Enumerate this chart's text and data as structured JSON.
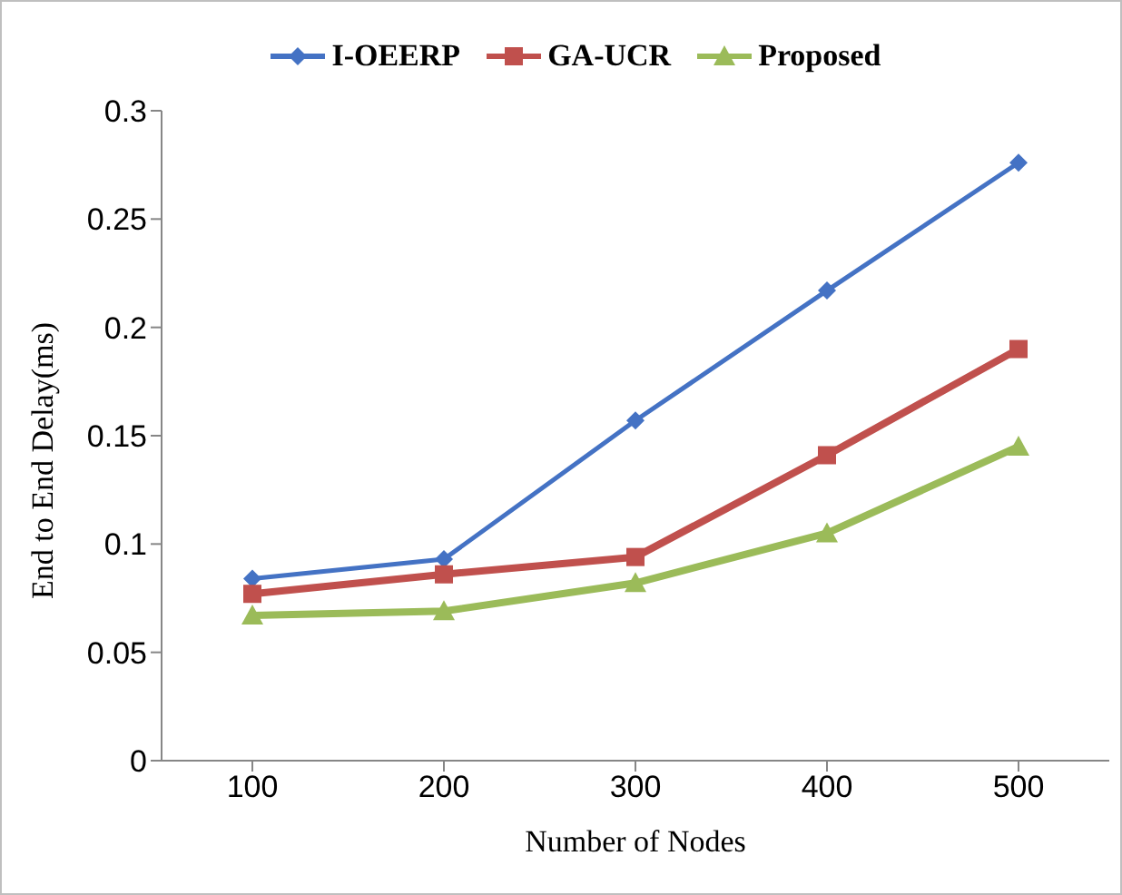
{
  "chart_data": {
    "type": "line",
    "xlabel": "Number of Nodes",
    "ylabel": "End to End Delay(ms)",
    "categories": [
      "100",
      "200",
      "300",
      "400",
      "500"
    ],
    "series": [
      {
        "name": "I-OEERP",
        "color": "#4472c4",
        "marker": "diamond",
        "values": [
          0.084,
          0.093,
          0.157,
          0.217,
          0.276
        ]
      },
      {
        "name": "GA-UCR",
        "color": "#c0504d",
        "marker": "square",
        "values": [
          0.077,
          0.086,
          0.094,
          0.141,
          0.19
        ]
      },
      {
        "name": "Proposed",
        "color": "#9bbb59",
        "marker": "triangle",
        "values": [
          0.067,
          0.069,
          0.082,
          0.105,
          0.145
        ]
      }
    ],
    "ylim": [
      0,
      0.3
    ],
    "yticks": [
      0,
      0.05,
      0.1,
      0.15,
      0.2,
      0.25,
      0.3
    ],
    "grid": false,
    "legend": "top"
  }
}
